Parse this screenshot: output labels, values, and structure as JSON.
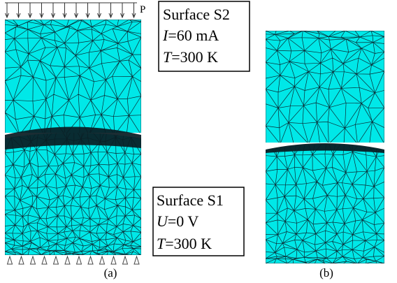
{
  "colors": {
    "mesh_fill": "#00e8e8",
    "mesh_line": "#0b2a33",
    "contact_band": "#0a1d24",
    "background": "#ffffff"
  },
  "panel_a": {
    "label": "(a)",
    "load_label": "P",
    "upper_box": {
      "line1": "Surface S2",
      "line2_var": "I",
      "line2_val": "=60 mA",
      "line3_var": "T",
      "line3_val": "=300 K"
    },
    "lower_box": {
      "line1": "Surface S1",
      "line2_var": "U",
      "line2_val": "=0 V",
      "line3_var": "T",
      "line3_val": "=300 K"
    }
  },
  "panel_b": {
    "label": "(b)"
  }
}
